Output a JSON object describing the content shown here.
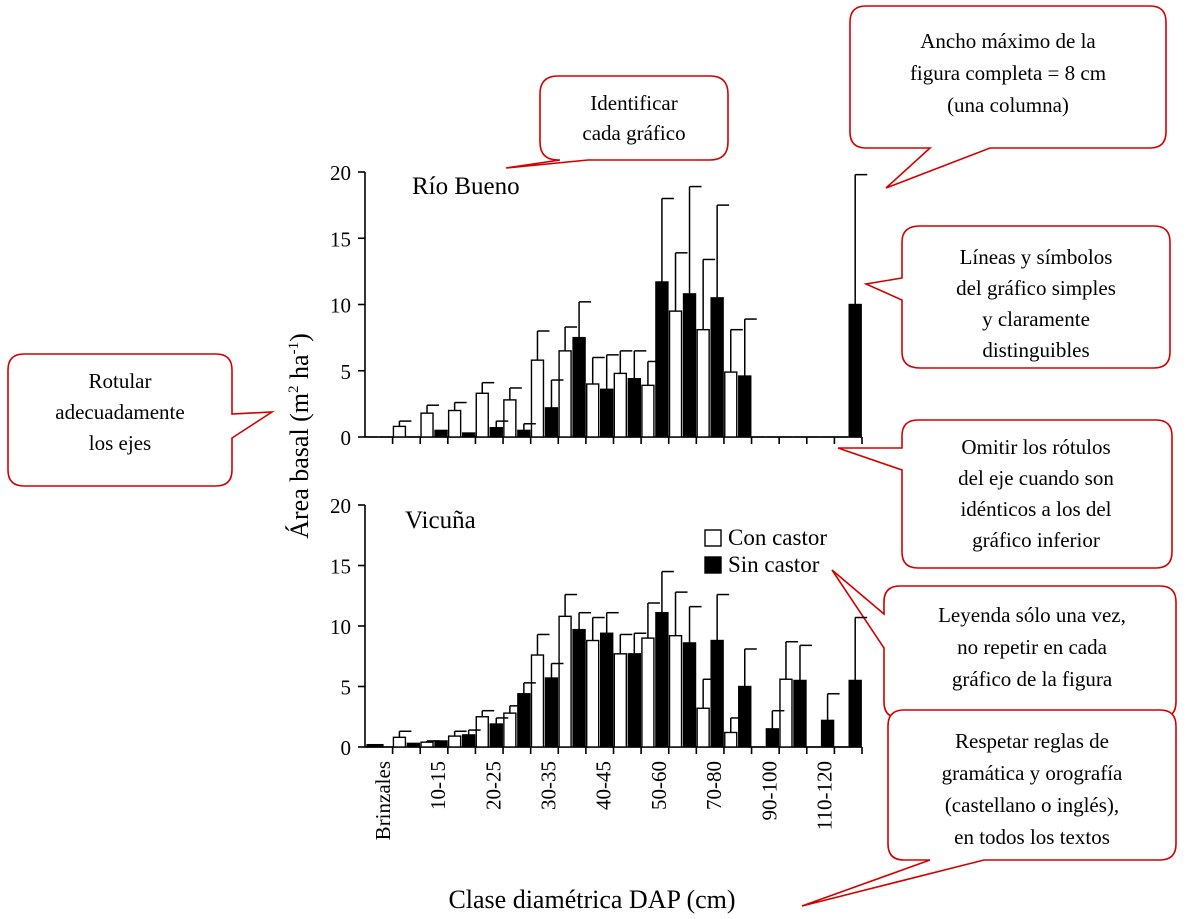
{
  "chart_data": {
    "type": "bar",
    "xlabel": "Clase diamétrica DAP (cm)",
    "ylabel_main": "Área basal (m",
    "ylabel_sup1": "2",
    "ylabel_mid": " ha",
    "ylabel_sup2": "-1",
    "ylabel_end": ")",
    "ylim": [
      0,
      20
    ],
    "yticks": [
      "0",
      "5",
      "10",
      "15",
      "20"
    ],
    "x_tick_labels": [
      "Brinzales",
      "10-15",
      "20-25",
      "30-35",
      "40-45",
      "50-60",
      "70-80",
      "90-100",
      "110-120"
    ],
    "legend": {
      "position": "top-right of lower panel",
      "items": [
        {
          "label": "Con castor",
          "color": "#ffffff"
        },
        {
          "label": "Sin castor",
          "color": "#000000"
        }
      ]
    },
    "panels": [
      {
        "title": "Río Bueno",
        "series": [
          {
            "name": "Con castor",
            "values": [
              0,
              0.8,
              1.8,
              2.0,
              3.3,
              2.8,
              5.8,
              6.5,
              4.0,
              4.8,
              3.9,
              9.5,
              8.1,
              4.9,
              0,
              0,
              0,
              0
            ],
            "errors": [
              0,
              0.4,
              0.6,
              0.6,
              0.8,
              0.9,
              2.2,
              1.8,
              2.0,
              1.7,
              1.8,
              4.4,
              5.3,
              3.2,
              0,
              0,
              0,
              0
            ]
          },
          {
            "name": "Sin castor",
            "values": [
              0,
              0,
              0.5,
              0.3,
              0.7,
              0.5,
              2.2,
              7.5,
              3.6,
              4.4,
              11.7,
              10.8,
              10.5,
              4.6,
              0,
              0,
              0,
              10.0
            ],
            "errors": [
              0,
              0,
              0,
              0,
              0.5,
              0.5,
              2.1,
              2.7,
              2.6,
              2.1,
              6.3,
              8.1,
              7.0,
              4.3,
              0,
              0,
              0,
              9.8
            ]
          }
        ]
      },
      {
        "title": "Vicuña",
        "series": [
          {
            "name": "Con castor",
            "values": [
              0,
              0.8,
              0.4,
              0.9,
              2.5,
              2.8,
              7.6,
              10.8,
              8.8,
              7.7,
              9.0,
              9.2,
              3.2,
              1.2,
              0,
              5.6,
              0,
              0
            ],
            "errors": [
              0,
              0.5,
              0.1,
              0.4,
              0.5,
              0.6,
              1.7,
              1.8,
              1.9,
              1.6,
              2.9,
              3.6,
              2.4,
              1.2,
              0,
              3.1,
              0,
              0
            ],
            "lead": 0.2
          },
          {
            "name": "Sin castor",
            "values": [
              0,
              0.3,
              0.5,
              1.0,
              1.9,
              4.4,
              5.7,
              9.7,
              9.4,
              7.7,
              11.1,
              8.6,
              8.8,
              5.0,
              1.5,
              5.5,
              2.2,
              5.5
            ],
            "errors": [
              0,
              0,
              0,
              0.4,
              0.5,
              0.9,
              1.2,
              1.4,
              1.7,
              1.7,
              3.4,
              3.0,
              3.8,
              3.1,
              1.5,
              2.9,
              2.2,
              5.2
            ]
          }
        ]
      }
    ]
  },
  "callouts": [
    {
      "name": "callout-identify",
      "lines": [
        "Identificar",
        "cada gráfico"
      ]
    },
    {
      "name": "callout-width",
      "lines": [
        "Ancho máximo de la",
        "figura completa = 8 cm",
        "(una columna)"
      ]
    },
    {
      "name": "callout-lines",
      "lines": [
        "Líneas y símbolos",
        "del gráfico simples",
        "y claramente",
        "distinguibles"
      ]
    },
    {
      "name": "callout-axes",
      "lines": [
        "Rotular",
        "adecuadamente",
        "los ejes"
      ]
    },
    {
      "name": "callout-omit",
      "lines": [
        "Omitir los rótulos",
        "del eje cuando son",
        "idénticos a los del",
        "gráfico inferior"
      ]
    },
    {
      "name": "callout-legend",
      "lines": [
        "Leyenda sólo una vez,",
        "no repetir en cada",
        "gráfico de la figura"
      ]
    },
    {
      "name": "callout-grammar",
      "lines": [
        "Respetar reglas de",
        "gramática y orografía",
        "(castellano o inglés),",
        "en todos los textos"
      ]
    }
  ]
}
